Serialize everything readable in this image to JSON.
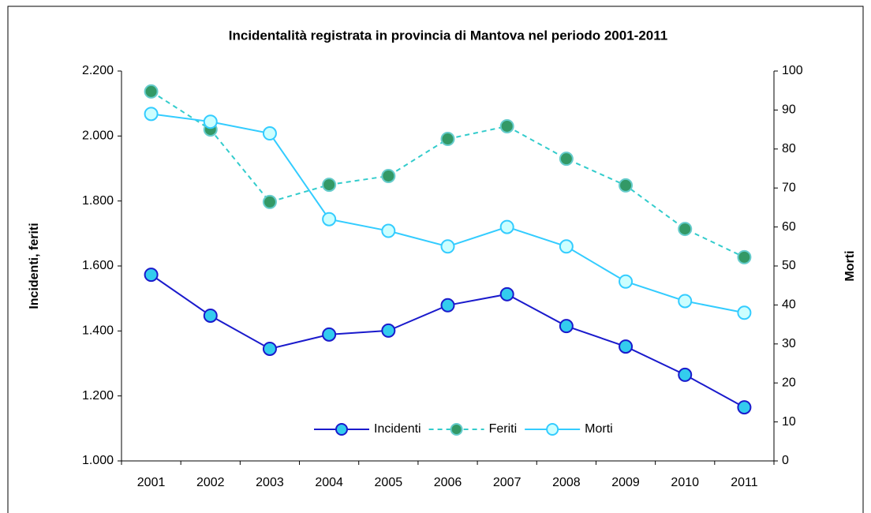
{
  "chart_data": {
    "type": "line",
    "title": "Incidentalità registrata in provincia di Mantova nel periodo 2001-2011",
    "y_label": "Incidenti, feriti",
    "y2_label": "Morti",
    "categories": [
      "2001",
      "2002",
      "2003",
      "2004",
      "2005",
      "2006",
      "2007",
      "2008",
      "2009",
      "2010",
      "2011"
    ],
    "series": [
      {
        "name": "Incidenti",
        "color": "#1a1acc",
        "marker_color": "#33ccee",
        "dashed": false,
        "values": [
          1573,
          1447,
          1345,
          1389,
          1401,
          1479,
          1513,
          1415,
          1352,
          1265,
          1165
        ]
      },
      {
        "name": "Feriti",
        "color": "#33cccc",
        "marker_color": "#339966",
        "dashed": true,
        "values": [
          2137,
          2020,
          1797,
          1850,
          1877,
          1991,
          2030,
          1930,
          1848,
          1714,
          1627
        ]
      },
      {
        "name": "Morti",
        "color": "#33ccff",
        "marker_color": "#ccffff",
        "dashed": false,
        "axis": "y2",
        "values": [
          89,
          87,
          84,
          62,
          59,
          55,
          60,
          55,
          46,
          41,
          38
        ]
      }
    ],
    "ylim": [
      1000,
      2200
    ],
    "yticks": [
      {
        "value": 1000,
        "label": "1.000"
      },
      {
        "value": 1200,
        "label": "1.200"
      },
      {
        "value": 1400,
        "label": "1.400"
      },
      {
        "value": 1600,
        "label": "1.600"
      },
      {
        "value": 1800,
        "label": "1.800"
      },
      {
        "value": 2000,
        "label": "2.000"
      },
      {
        "value": 2200,
        "label": "2.200"
      }
    ],
    "y2lim": [
      0,
      100
    ],
    "y2ticks": [
      0,
      10,
      20,
      30,
      40,
      50,
      60,
      70,
      80,
      90,
      100
    ],
    "grid": false,
    "legend": "bottom"
  }
}
